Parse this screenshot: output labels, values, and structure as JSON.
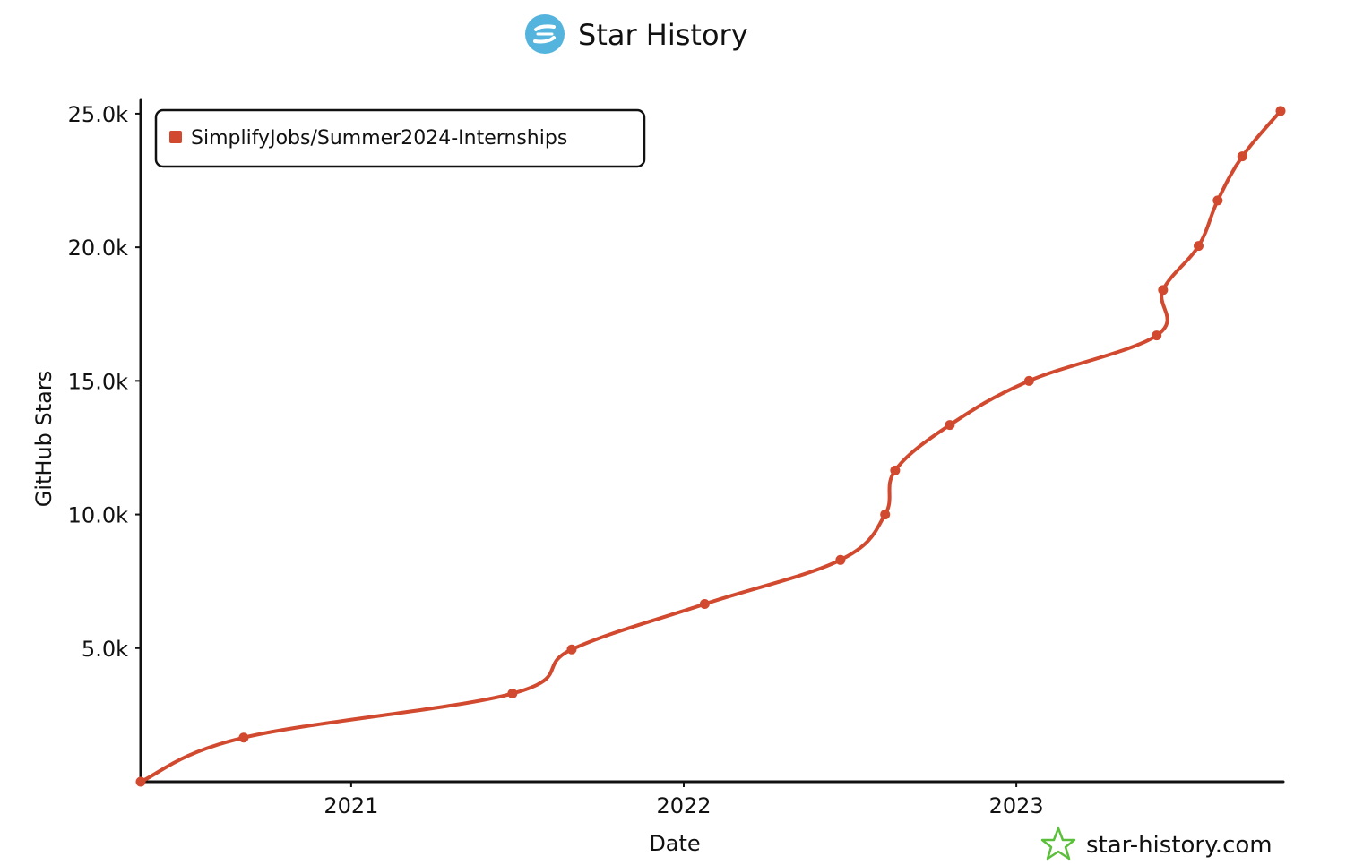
{
  "header": {
    "title": "Star History",
    "logo_icon": "star-history-logo-icon"
  },
  "watermark": {
    "text": "star-history.com",
    "icon": "star-outline-icon",
    "icon_color": "#5bbf3b"
  },
  "colors": {
    "series": "#d1492e",
    "axis": "#111111",
    "logo_bg": "#54b4dd"
  },
  "chart_data": {
    "type": "line",
    "title": "Star History",
    "xlabel": "Date",
    "ylabel": "GitHub Stars",
    "x_type": "date",
    "xlim": [
      "2020-05-15",
      "2023-10-18"
    ],
    "ylim": [
      0,
      25500
    ],
    "x_ticks": [
      {
        "date": "2021-01-01",
        "label": "2021"
      },
      {
        "date": "2022-01-01",
        "label": "2022"
      },
      {
        "date": "2023-01-01",
        "label": "2023"
      }
    ],
    "y_ticks": [
      {
        "value": 5000,
        "label": "5.0k"
      },
      {
        "value": 10000,
        "label": "10.0k"
      },
      {
        "value": 15000,
        "label": "15.0k"
      },
      {
        "value": 20000,
        "label": "20.0k"
      },
      {
        "value": 25000,
        "label": "25.0k"
      }
    ],
    "grid": false,
    "legend_position": "top-left",
    "series": [
      {
        "name": "SimplifyJobs/Summer2024-Internships",
        "color": "#d1492e",
        "points": [
          {
            "x": "2020-05-15",
            "y": 0
          },
          {
            "x": "2020-09-05",
            "y": 1650
          },
          {
            "x": "2021-06-27",
            "y": 3300
          },
          {
            "x": "2021-08-31",
            "y": 4950
          },
          {
            "x": "2022-01-24",
            "y": 6650
          },
          {
            "x": "2022-06-22",
            "y": 8300
          },
          {
            "x": "2022-08-10",
            "y": 10000
          },
          {
            "x": "2022-08-21",
            "y": 11650
          },
          {
            "x": "2022-10-20",
            "y": 13350
          },
          {
            "x": "2023-01-15",
            "y": 15000
          },
          {
            "x": "2023-06-04",
            "y": 16700
          },
          {
            "x": "2023-06-11",
            "y": 18400
          },
          {
            "x": "2023-07-20",
            "y": 20050
          },
          {
            "x": "2023-08-10",
            "y": 21750
          },
          {
            "x": "2023-09-06",
            "y": 23400
          },
          {
            "x": "2023-10-18",
            "y": 25100
          }
        ]
      }
    ]
  }
}
